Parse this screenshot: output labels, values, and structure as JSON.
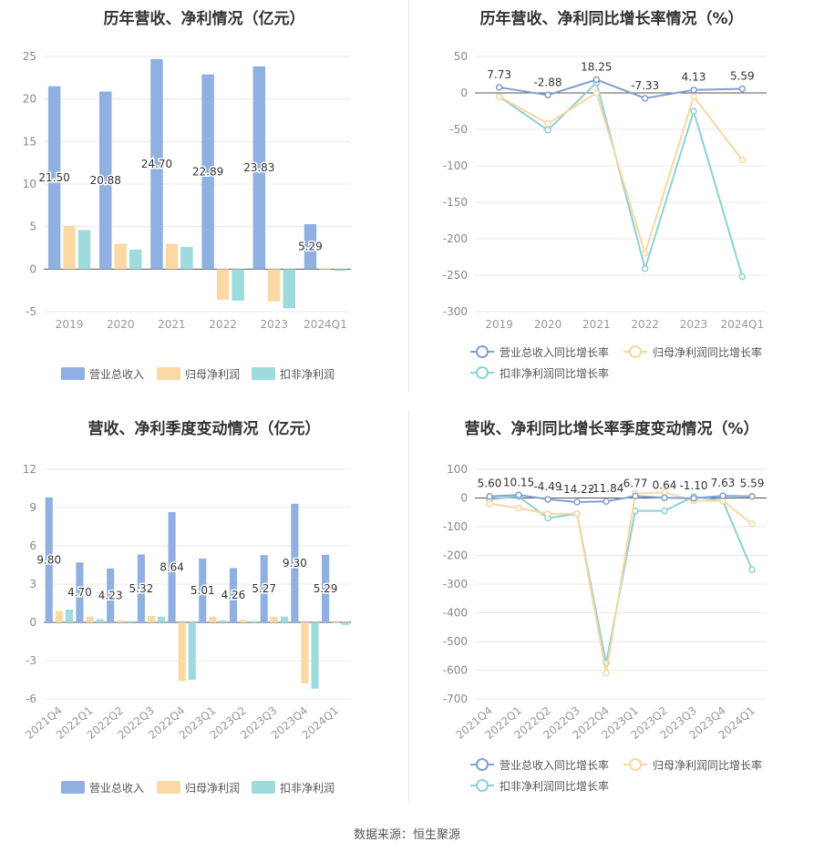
{
  "charts": {
    "annual_revenue": {
      "title": "历年营收、净利情况（亿元）"
    },
    "annual_growth": {
      "title": "历年营收、净利同比增长率情况（%）"
    },
    "quarterly_revenue": {
      "title": "营收、净利季度变动情况（亿元）"
    },
    "quarterly_growth": {
      "title": "营收、净利同比增长率季度变动情况（%）"
    }
  },
  "footer": {
    "source": "数据来源：恒生聚源"
  },
  "colors": {
    "revenue": "#8fb0e0",
    "net_profit": "#fbd9a5",
    "deducted_profit": "#9edbdc",
    "revenue_line": "#7f9fd6",
    "net_line": "#f8d7a0",
    "ded_line": "#8cd2d6"
  },
  "chart_data": [
    {
      "type": "bar",
      "title": "历年营收、净利情况（亿元）",
      "categories": [
        "2019",
        "2020",
        "2021",
        "2022",
        "2023",
        "2024Q1"
      ],
      "ylim": [
        -5,
        25
      ],
      "yticks": [
        -5,
        0,
        5,
        10,
        15,
        20,
        25
      ],
      "series": [
        {
          "name": "营业总收入",
          "values": [
            21.5,
            20.88,
            24.7,
            22.89,
            23.83,
            5.29
          ],
          "labels": [
            "21.50",
            "20.88",
            "24.70",
            "22.89",
            "23.83",
            "5.29"
          ]
        },
        {
          "name": "归母净利润",
          "values": [
            5.1,
            3.0,
            3.0,
            -3.6,
            -3.8,
            -0.05
          ]
        },
        {
          "name": "扣非净利润",
          "values": [
            4.6,
            2.3,
            2.6,
            -3.7,
            -4.6,
            -0.2
          ]
        }
      ],
      "legend": "bottom",
      "grid": true
    },
    {
      "type": "line",
      "title": "历年营收、净利同比增长率情况（%）",
      "categories": [
        "2019",
        "2020",
        "2021",
        "2022",
        "2023",
        "2024Q1"
      ],
      "ylim": [
        -300,
        50
      ],
      "yticks": [
        -300,
        -250,
        -200,
        -150,
        -100,
        -50,
        0,
        50
      ],
      "series": [
        {
          "name": "营业总收入同比增长率",
          "values": [
            7.73,
            -2.88,
            18.25,
            -7.33,
            4.13,
            5.59
          ],
          "labels": [
            "7.73",
            "-2.88",
            "18.25",
            "-7.33",
            "4.13",
            "5.59"
          ]
        },
        {
          "name": "归母净利润同比增长率",
          "values": [
            -5,
            -42,
            0,
            -220,
            -5,
            -92
          ]
        },
        {
          "name": "扣非净利润同比增长率",
          "values": [
            -5,
            -51,
            14,
            -241,
            -25,
            -252
          ]
        }
      ],
      "legend": "bottom",
      "grid": true
    },
    {
      "type": "bar",
      "title": "营收、净利季度变动情况（亿元）",
      "categories": [
        "2021Q4",
        "2022Q1",
        "2022Q2",
        "2022Q3",
        "2022Q4",
        "2023Q1",
        "2023Q2",
        "2023Q3",
        "2023Q4",
        "2024Q1"
      ],
      "ylim": [
        -6,
        12
      ],
      "yticks": [
        -6,
        -3,
        0,
        3,
        6,
        9,
        12
      ],
      "series": [
        {
          "name": "营业总收入",
          "values": [
            9.8,
            4.7,
            4.23,
            5.32,
            8.64,
            5.01,
            4.26,
            5.27,
            9.3,
            5.29
          ],
          "labels": [
            "9.80",
            "4.70",
            "4.23",
            "5.32",
            "8.64",
            "5.01",
            "4.26",
            "5.27",
            "9.30",
            "5.29"
          ]
        },
        {
          "name": "归母净利润",
          "values": [
            0.9,
            0.45,
            0.15,
            0.5,
            -4.6,
            0.45,
            0.2,
            0.45,
            -4.8,
            -0.05
          ]
        },
        {
          "name": "扣非净利润",
          "values": [
            1.0,
            0.25,
            0.1,
            0.45,
            -4.5,
            0.15,
            0.1,
            0.45,
            -5.2,
            -0.2
          ]
        }
      ],
      "legend": "bottom",
      "grid": true
    },
    {
      "type": "line",
      "title": "营收、净利同比增长率季度变动情况（%）",
      "categories": [
        "2021Q4",
        "2022Q1",
        "2022Q2",
        "2022Q3",
        "2022Q4",
        "2023Q1",
        "2023Q2",
        "2023Q3",
        "2023Q4",
        "2024Q1"
      ],
      "ylim": [
        -700,
        100
      ],
      "yticks": [
        -700,
        -600,
        -500,
        -400,
        -300,
        -200,
        -100,
        0,
        100
      ],
      "series": [
        {
          "name": "营业总收入同比增长率",
          "values": [
            5.6,
            10.15,
            -4.49,
            -14.22,
            -11.84,
            6.77,
            0.64,
            -1.1,
            7.63,
            5.59
          ],
          "labels": [
            "5.60",
            "10.15",
            "-4.49",
            "-14.22",
            "-11.84",
            "6.77",
            "0.64",
            "-1.10",
            "7.63",
            "5.59"
          ]
        },
        {
          "name": "归母净利润同比增长率",
          "values": [
            -20,
            -35,
            -55,
            -55,
            -610,
            15,
            20,
            -10,
            -10,
            -90
          ]
        },
        {
          "name": "扣非净利润同比增长率",
          "values": [
            -5,
            5,
            -70,
            -55,
            -575,
            -45,
            -45,
            5,
            -10,
            -250
          ]
        }
      ],
      "legend": "bottom",
      "grid": true
    }
  ]
}
